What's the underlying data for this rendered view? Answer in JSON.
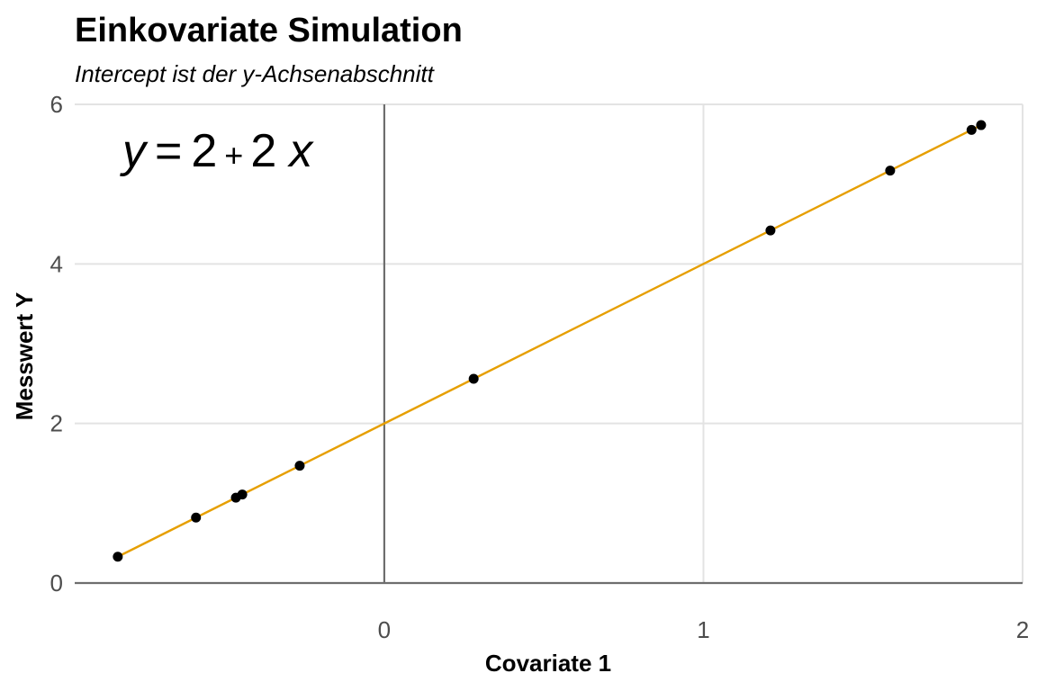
{
  "chart_data": {
    "type": "scatter",
    "title": "Einkovariate Simulation",
    "subtitle": "Intercept ist der y-Achsenabschnitt",
    "xlabel": "Covariate 1",
    "ylabel": "Messwert Y",
    "xlim": [
      -0.97,
      2.0
    ],
    "ylim": [
      0,
      6
    ],
    "x_ticks": [
      0,
      1,
      2
    ],
    "y_ticks": [
      0,
      2,
      4,
      6
    ],
    "x_tick_labels": [
      "0",
      "1",
      "2"
    ],
    "y_tick_labels": [
      "0",
      "2",
      "4",
      "6"
    ],
    "grid": true,
    "reference_lines": {
      "x": 0,
      "y": 0
    },
    "point_color": "#000000",
    "line_color": "#e69f00",
    "points": [
      {
        "x": -0.835,
        "y": 0.33
      },
      {
        "x": -0.59,
        "y": 0.82
      },
      {
        "x": -0.465,
        "y": 1.07
      },
      {
        "x": -0.445,
        "y": 1.11
      },
      {
        "x": -0.265,
        "y": 1.47
      },
      {
        "x": 0.28,
        "y": 2.56
      },
      {
        "x": 1.21,
        "y": 4.42
      },
      {
        "x": 1.585,
        "y": 5.17
      },
      {
        "x": 1.84,
        "y": 5.68
      },
      {
        "x": 1.87,
        "y": 5.74
      }
    ],
    "fit_line": {
      "intercept": 2,
      "slope": 2,
      "x_from": -0.835,
      "x_to": 1.87
    },
    "annotation": {
      "lhs": "y",
      "eq": "=",
      "intercept": "2",
      "plus": "+",
      "slope": "2",
      "var": "x"
    }
  }
}
